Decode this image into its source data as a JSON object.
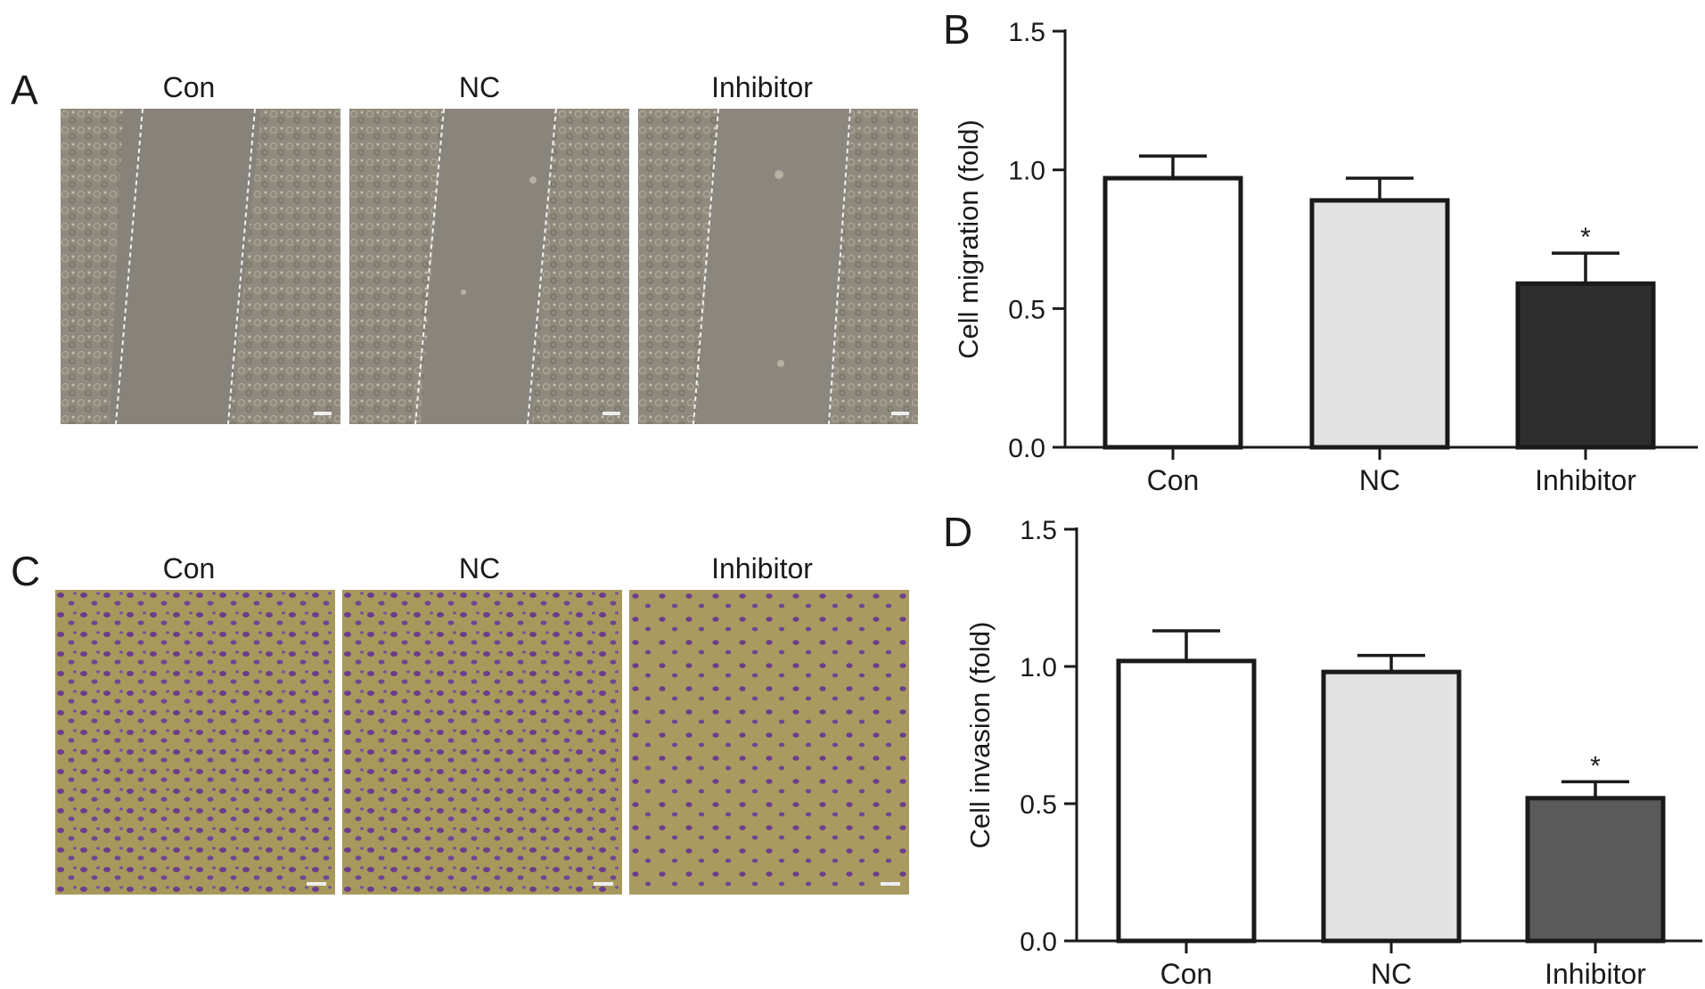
{
  "panels": {
    "A": {
      "letter": "A",
      "images": [
        {
          "label": "Con"
        },
        {
          "label": "NC"
        },
        {
          "label": "Inhibitor"
        }
      ]
    },
    "C": {
      "letter": "C",
      "images": [
        {
          "label": "Con"
        },
        {
          "label": "NC"
        },
        {
          "label": "Inhibitor"
        }
      ]
    },
    "B": {
      "letter": "B"
    },
    "D": {
      "letter": "D"
    }
  },
  "colors": {
    "wound_bg": "#8a8478",
    "transwell_bg": "#a89a5e",
    "cell_purple": "#6b3d8a",
    "bar_con": "#ffffff",
    "bar_nc": "#e2e2e2",
    "bar_inhibitor_B": "#2e2e2e",
    "bar_inhibitor_D": "#5a5a5a"
  },
  "chart_data": [
    {
      "type": "bar",
      "panel": "B",
      "categories": [
        "Con",
        "NC",
        "Inhibitor"
      ],
      "values": [
        0.97,
        0.89,
        0.59
      ],
      "errors": [
        0.08,
        0.08,
        0.11
      ],
      "significance": [
        "",
        "",
        "*"
      ],
      "ylabel": "Cell migration (fold)",
      "ylim": [
        0,
        1.5
      ],
      "yticks": [
        "0.0",
        "0.5",
        "1.0",
        "1.5"
      ],
      "ytick_values": [
        0,
        0.5,
        1.0,
        1.5
      ]
    },
    {
      "type": "bar",
      "panel": "D",
      "categories": [
        "Con",
        "NC",
        "Inhibitor"
      ],
      "values": [
        1.02,
        0.98,
        0.52
      ],
      "errors": [
        0.11,
        0.06,
        0.06
      ],
      "significance": [
        "",
        "",
        "*"
      ],
      "ylabel": "Cell invasion (fold)",
      "ylim": [
        0,
        1.5
      ],
      "yticks": [
        "0.0",
        "0.5",
        "1.0",
        "1.5"
      ],
      "ytick_values": [
        0,
        0.5,
        1.0,
        1.5
      ]
    }
  ]
}
